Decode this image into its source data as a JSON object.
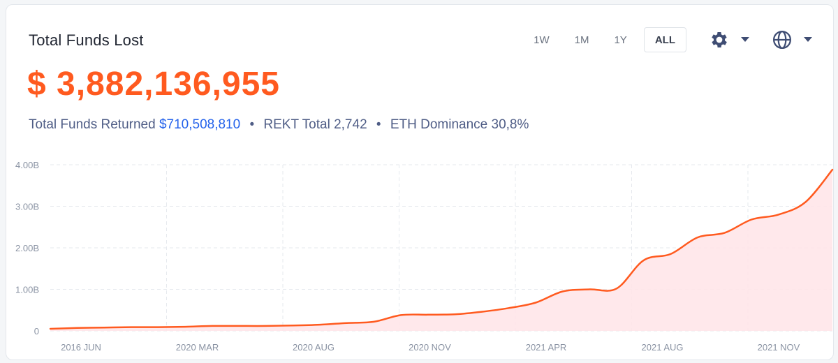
{
  "header": {
    "title": "Total Funds Lost",
    "ranges": [
      "1W",
      "1M",
      "1Y",
      "ALL"
    ],
    "active_range": "ALL",
    "settings_icon": "gear-icon",
    "language_icon": "globe-icon"
  },
  "summary": {
    "amount": "$ 3,882,136,955",
    "returned_label": "Total Funds Returned",
    "returned_value": "$710,508,810",
    "rekt_total": "REKT Total 2,742",
    "eth_dominance": "ETH Dominance 30,8%",
    "separator": "•"
  },
  "colors": {
    "accent": "#ff5a1f",
    "line": "#ff5a1f",
    "area_fill": "#ffe4e8",
    "link_blue": "#2563eb",
    "stats_text": "#4f5d86"
  },
  "chart_data": {
    "type": "area",
    "title": "Total Funds Lost",
    "xlabel": "",
    "ylabel": "",
    "y_ticks": [
      "0",
      "1.00B",
      "2.00B",
      "3.00B",
      "4.00B"
    ],
    "y_tick_values": [
      0,
      1000000000,
      2000000000,
      3000000000,
      4000000000
    ],
    "ylim": [
      0,
      4000000000
    ],
    "x_ticks": [
      "2016 JUN",
      "2020 MAR",
      "2020 AUG",
      "2020 NOV",
      "2021 APR",
      "2021 AUG",
      "2021 NOV"
    ],
    "grid": true,
    "series": [
      {
        "values": [
          0.05,
          0.07,
          0.08,
          0.09,
          0.09,
          0.1,
          0.12,
          0.12,
          0.12,
          0.13,
          0.15,
          0.19,
          0.22,
          0.38,
          0.39,
          0.4,
          0.46,
          0.55,
          0.68,
          0.95,
          1.0,
          1.02,
          1.7,
          1.85,
          2.25,
          2.36,
          2.68,
          2.8,
          3.1,
          3.88
        ],
        "unit": "B"
      }
    ]
  }
}
